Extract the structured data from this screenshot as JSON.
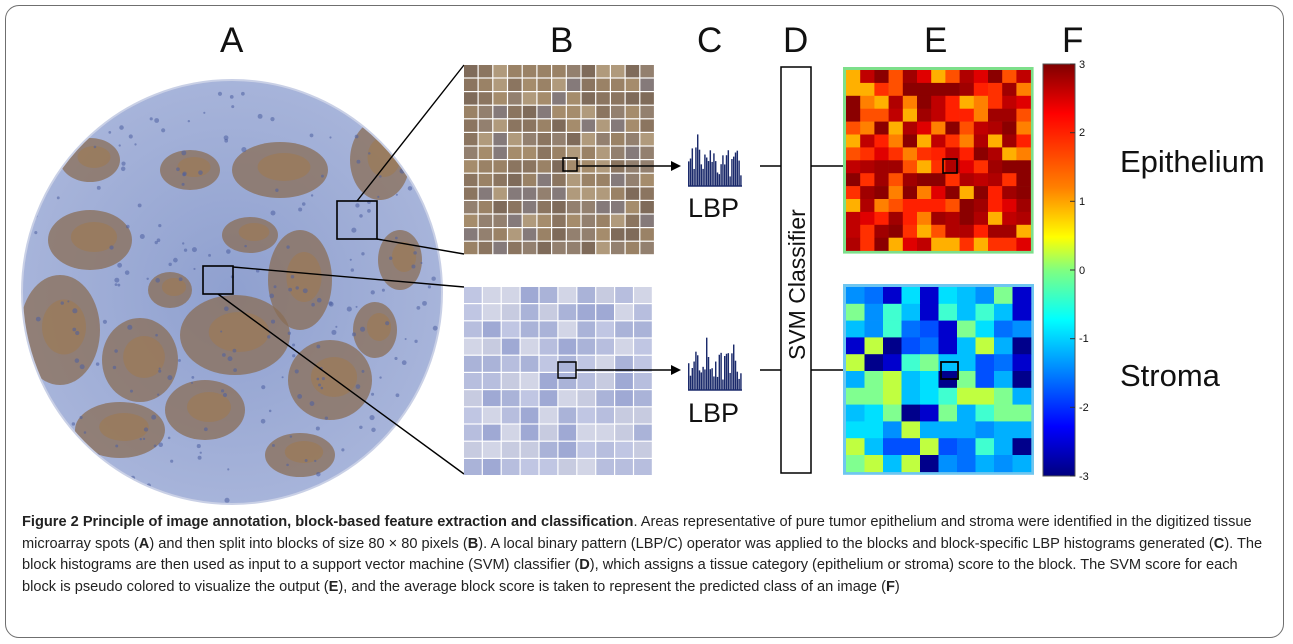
{
  "figure": {
    "panel_labels": [
      "A",
      "B",
      "C",
      "D",
      "E",
      "F"
    ],
    "lbp_label_top": "LBP",
    "lbp_label_bottom": "LBP",
    "svm_label": "SVM Classifier",
    "label_epithelium": "Epithelium",
    "label_stroma": "Stroma",
    "colorbar_ticks": [
      "3",
      "2",
      "1",
      "0",
      "-1",
      "-2",
      "-3"
    ],
    "colors": {
      "stain_blue": "#7a8fc4",
      "stain_brown": "#8a6a4a",
      "hist_bar": "#1b2a6b",
      "frame": "#6f6f6f"
    }
  },
  "caption": {
    "title": "Figure 2 Principle of image annotation, block-based feature extraction and classification",
    "s1a": ". Areas representative of pure tumor epithelium and stroma were identified in the digitized tissue microarray spots (",
    "A": "A",
    "s1b": ") and then split into blocks of size 80 × 80 pixels (",
    "B": "B",
    "s1c": "). A local binary pattern (LBP/C) operator was applied to the blocks and block-specific LBP histograms generated (",
    "C": "C",
    "s1d": "). The block histograms are then used as input to a support vector machine (SVM) classifier (",
    "D": "D",
    "s1e": "), which assigns a tissue category (epithelium or stroma) score to the block. The SVM score for each block is pseudo colored to visualize the output (",
    "E": "E",
    "s1f": "), and the average block score is taken to represent the predicted class of an image (",
    "F": "F",
    "s1g": ")"
  }
}
